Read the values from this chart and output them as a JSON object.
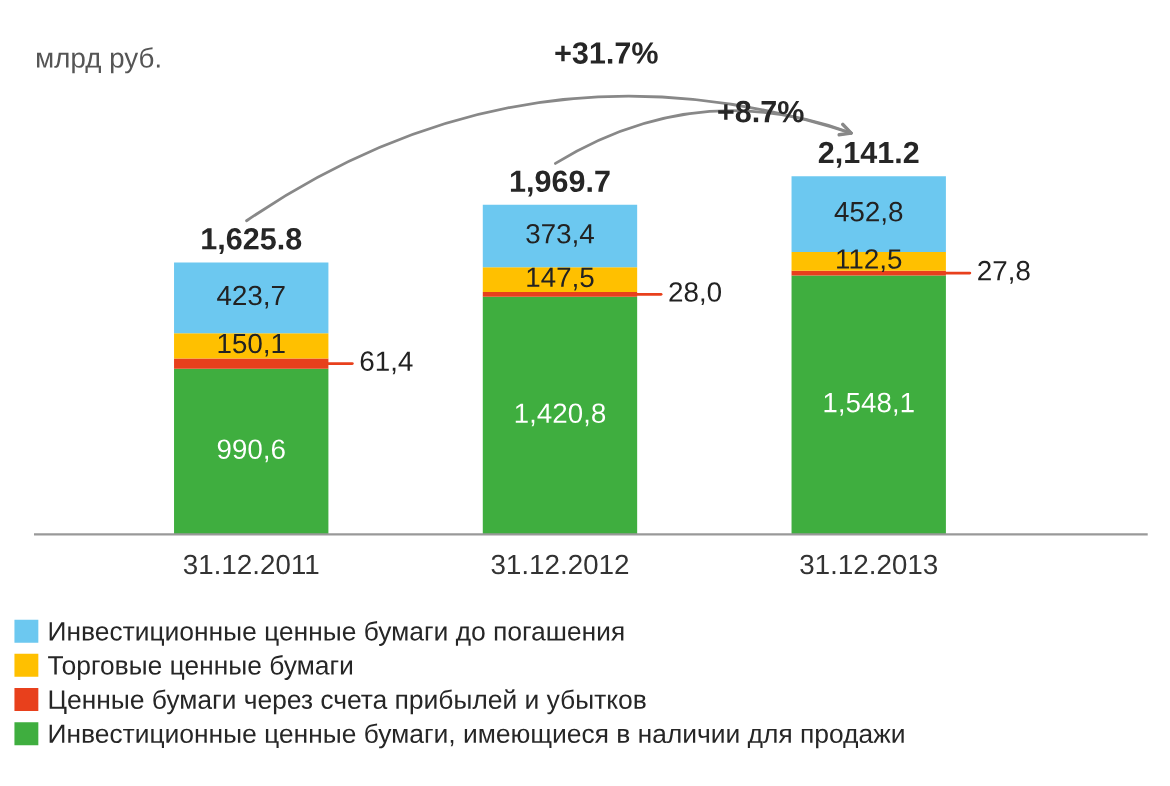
{
  "chart_data": {
    "type": "bar",
    "stacked": true,
    "ylabel": "млрд руб.",
    "categories": [
      "31.12.2011",
      "31.12.2012",
      "31.12.2013"
    ],
    "series": [
      {
        "name": "Инвестиционные ценные бумаги, имеющиеся в наличии для продажи",
        "color": "#3fae3f",
        "values": [
          990.6,
          1420.8,
          1548.1
        ],
        "value_labels": [
          "990,6",
          "1,420,8",
          "1,548,1"
        ]
      },
      {
        "name": "Ценные бумаги через счета прибылей и убытков",
        "color": "#e8401c",
        "values": [
          61.4,
          28.0,
          27.8
        ],
        "value_labels": [
          "61,4",
          "28,0",
          "27,8"
        ]
      },
      {
        "name": "Торговые ценные бумаги",
        "color": "#ffc000",
        "values": [
          150.1,
          147.5,
          112.5
        ],
        "value_labels": [
          "150,1",
          "147,5",
          "112,5"
        ]
      },
      {
        "name": "Инвестиционные ценные бумаги до погашения",
        "color": "#6cc8f0",
        "values": [
          423.7,
          373.4,
          452.8
        ],
        "value_labels": [
          "423,7",
          "373,4",
          "452,8"
        ]
      }
    ],
    "totals": [
      "1,625.8",
      "1,969.7",
      "2,141.2"
    ],
    "annotations": [
      "+31.7%",
      "+8.7%"
    ],
    "legend": "bottom",
    "grid": false
  }
}
